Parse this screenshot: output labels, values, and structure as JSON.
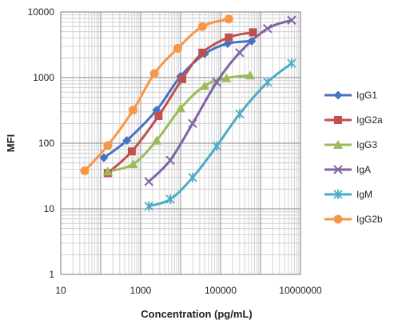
{
  "chart_data": {
    "type": "line",
    "title": "",
    "xlabel": "Concentration (pg/mL)",
    "ylabel": "MFI",
    "x_scale": "log",
    "y_scale": "log",
    "xlim": [
      10,
      10000000
    ],
    "ylim": [
      1,
      10000
    ],
    "x_ticks": [
      "10",
      "1000",
      "100000",
      "10000000"
    ],
    "y_ticks": [
      "1",
      "10",
      "100",
      "1000",
      "10000"
    ],
    "grid": true,
    "legend_position": "right",
    "series": [
      {
        "name": "IgG1",
        "color": "#4472C4",
        "marker": "diamond",
        "x": [
          120,
          450,
          2500,
          10000,
          40000,
          150000,
          600000
        ],
        "y": [
          60,
          110,
          320,
          1050,
          2300,
          3300,
          3600
        ]
      },
      {
        "name": "IgG2a",
        "color": "#C0504D",
        "marker": "square",
        "x": [
          150,
          600,
          2800,
          11000,
          35000,
          160000,
          650000
        ],
        "y": [
          35,
          75,
          260,
          950,
          2400,
          4100,
          4900
        ]
      },
      {
        "name": "IgG3",
        "color": "#9BBB59",
        "marker": "triangle",
        "x": [
          150,
          650,
          2500,
          10000,
          40000,
          140000,
          550000
        ],
        "y": [
          37,
          48,
          110,
          340,
          750,
          980,
          1080
        ]
      },
      {
        "name": "IgA",
        "color": "#8064A2",
        "marker": "x",
        "x": [
          1600,
          5500,
          20000,
          80000,
          300000,
          1500000,
          6000000
        ],
        "y": [
          26,
          55,
          200,
          850,
          2400,
          5600,
          7500
        ]
      },
      {
        "name": "IgM",
        "color": "#4BACC6",
        "marker": "star",
        "x": [
          1600,
          5500,
          20000,
          80000,
          300000,
          1500000,
          6000000
        ],
        "y": [
          11,
          14,
          30,
          90,
          280,
          850,
          1650
        ]
      },
      {
        "name": "IgG2b",
        "color": "#F79646",
        "marker": "circle",
        "x": [
          40,
          150,
          650,
          2200,
          8500,
          35000,
          160000
        ],
        "y": [
          38,
          92,
          320,
          1150,
          2800,
          6000,
          7800
        ]
      }
    ]
  }
}
